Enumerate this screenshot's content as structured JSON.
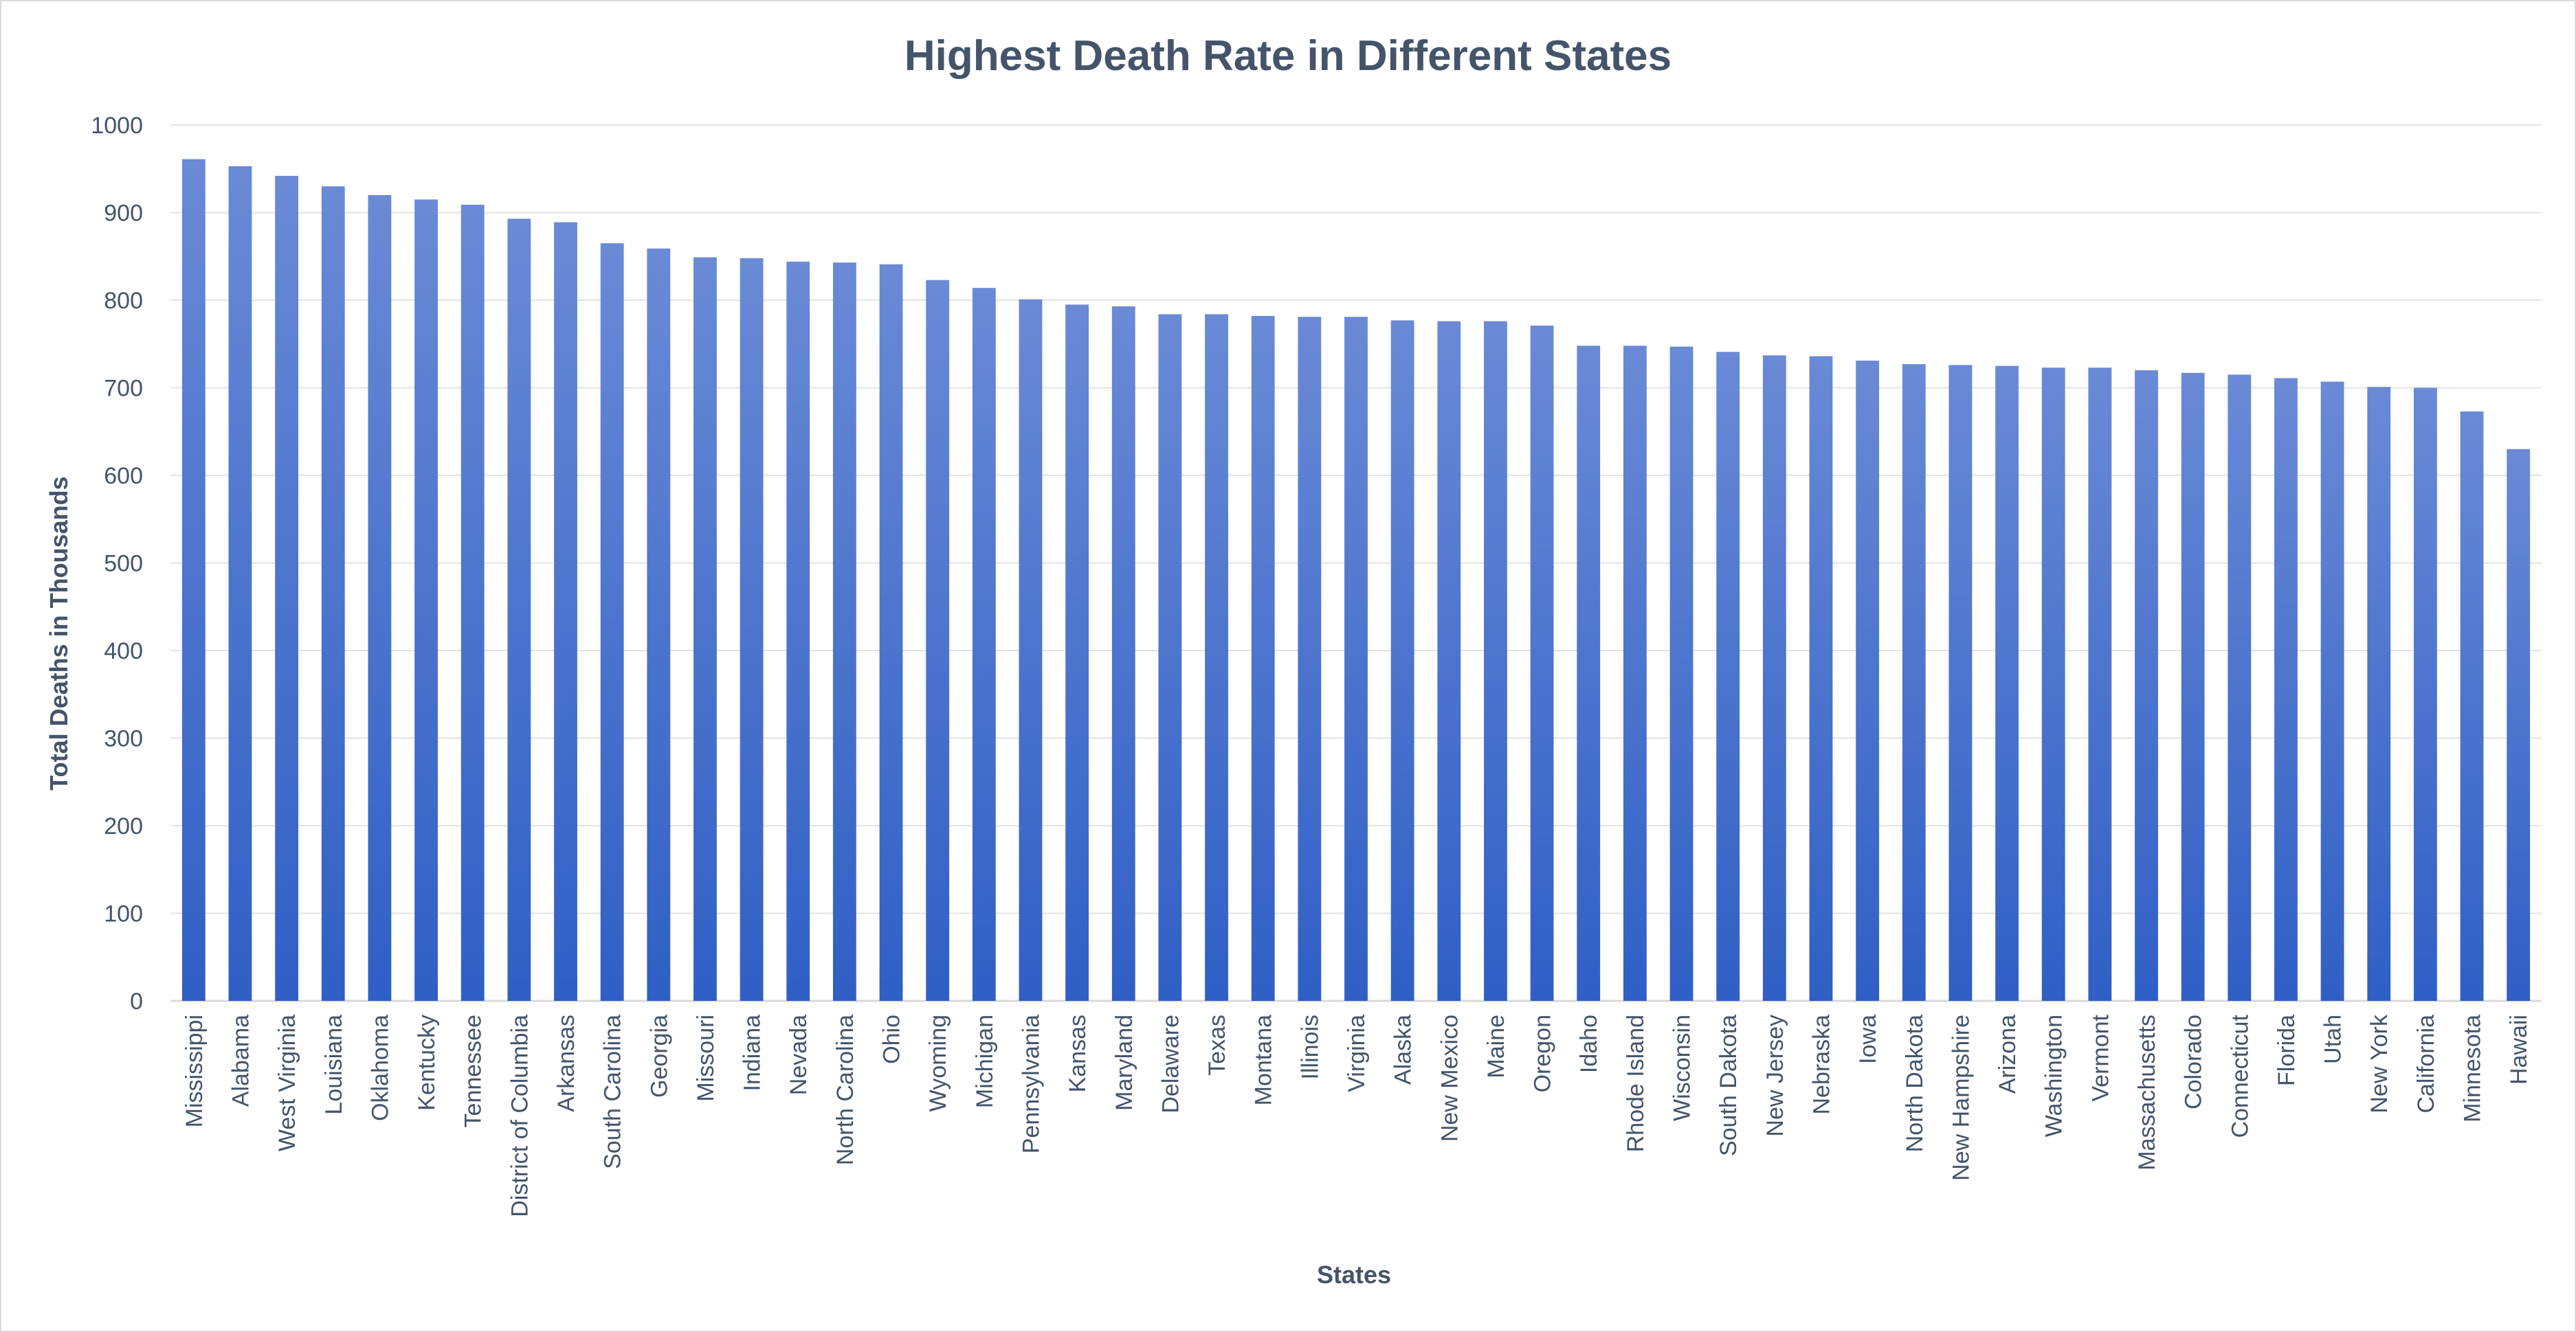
{
  "chart_data": {
    "type": "bar",
    "title": "Highest Death Rate in Different States",
    "xlabel": "States",
    "ylabel": "Total Deaths in Thousands",
    "ylim": [
      0,
      1000
    ],
    "yticks": [
      0,
      100,
      200,
      300,
      400,
      500,
      600,
      700,
      800,
      900,
      1000
    ],
    "grid": true,
    "legend": "none",
    "categories": [
      "Mississippi",
      "Alabama",
      "West Virginia",
      "Louisiana",
      "Oklahoma",
      "Kentucky",
      "Tennessee",
      "District of Columbia",
      "Arkansas",
      "South Carolina",
      "Georgia",
      "Missouri",
      "Indiana",
      "Nevada",
      "North Carolina",
      "Ohio",
      "Wyoming",
      "Michigan",
      "Pennsylvania",
      "Kansas",
      "Maryland",
      "Delaware",
      "Texas",
      "Montana",
      "Illinois",
      "Virginia",
      "Alaska",
      "New Mexico",
      "Maine",
      "Oregon",
      "Idaho",
      "Rhode Island",
      "Wisconsin",
      "South Dakota",
      "New Jersey",
      "Nebraska",
      "Iowa",
      "North Dakota",
      "New Hampshire",
      "Arizona",
      "Washington",
      "Vermont",
      "Massachusetts",
      "Colorado",
      "Connecticut",
      "Florida",
      "Utah",
      "New York",
      "California",
      "Minnesota",
      "Hawaii"
    ],
    "values": [
      961,
      953,
      942,
      930,
      920,
      915,
      909,
      893,
      889,
      865,
      859,
      849,
      848,
      844,
      843,
      841,
      823,
      814,
      801,
      795,
      793,
      784,
      784,
      782,
      781,
      781,
      777,
      776,
      776,
      771,
      748,
      748,
      747,
      741,
      737,
      736,
      731,
      727,
      726,
      725,
      723,
      723,
      720,
      717,
      715,
      711,
      707,
      701,
      700,
      673,
      630
    ],
    "colors": {
      "bar_top": "#6a8ad6",
      "bar_bottom": "#2f5fc5",
      "grid": "#e3e3e3",
      "axis": "#d9d9d9",
      "text": "#44546a"
    }
  }
}
